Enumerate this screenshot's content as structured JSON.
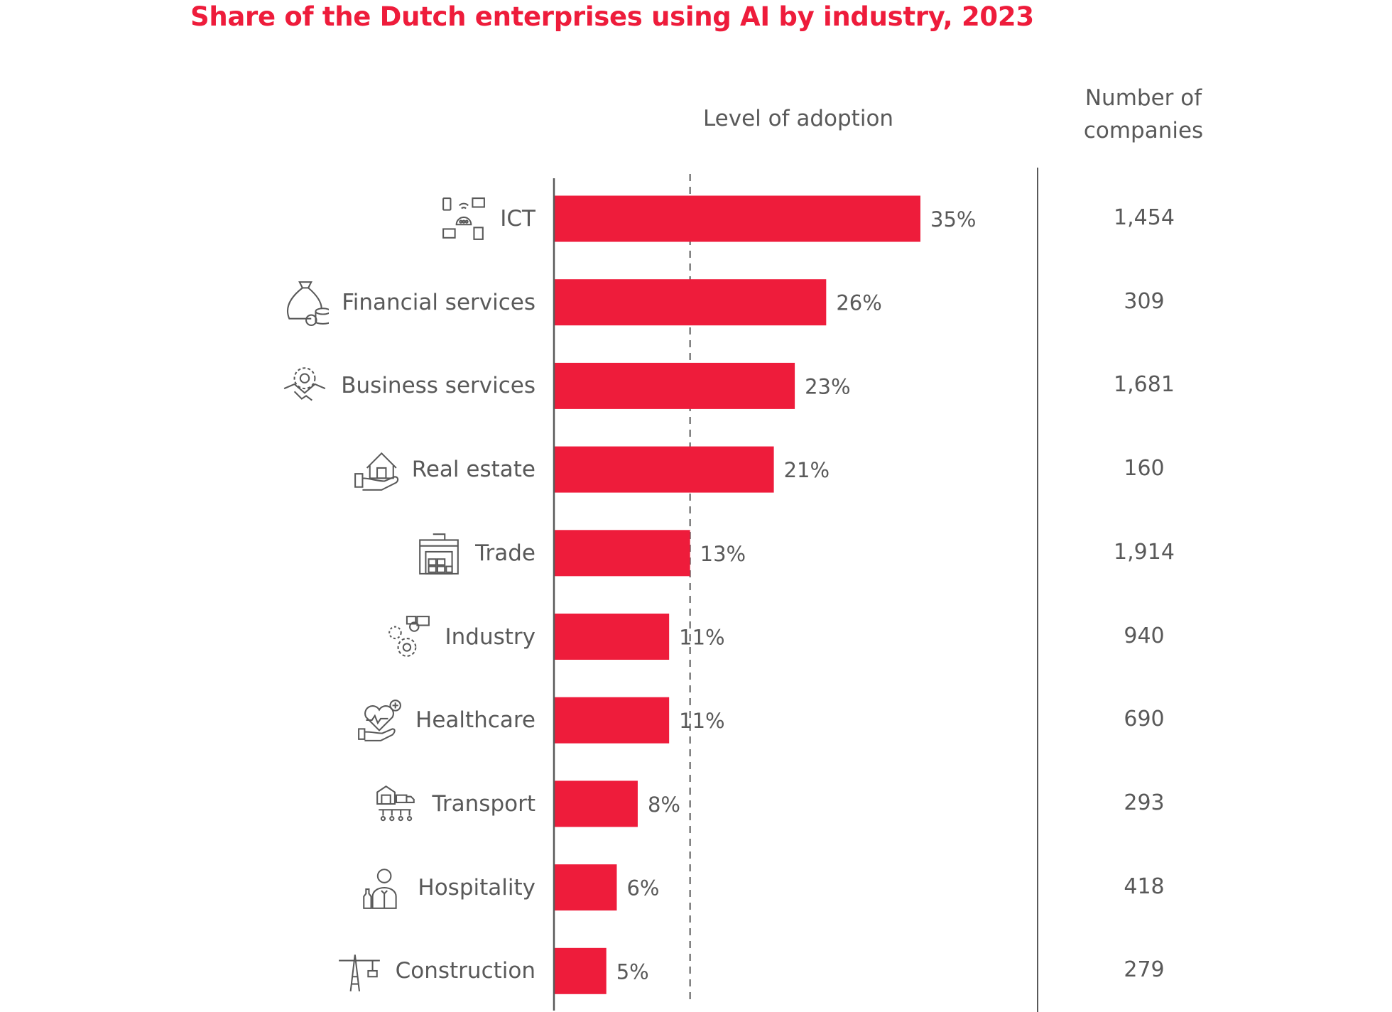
{
  "chart_data": {
    "type": "bar",
    "orientation": "horizontal",
    "title": "Share of the Dutch enterprises using AI by industry, 2023",
    "value_header": "Level of adoption",
    "count_header": "Number of companies",
    "categories": [
      "ICT",
      "Financial services",
      "Business services",
      "Real estate",
      "Trade",
      "Industry",
      "Healthcare",
      "Transport",
      "Hospitality",
      "Construction"
    ],
    "values": [
      35,
      26,
      23,
      21,
      13,
      11,
      11,
      8,
      6,
      5
    ],
    "value_labels": [
      "35%",
      "26%",
      "23%",
      "21%",
      "13%",
      "11%",
      "11%",
      "8%",
      "6%",
      "5%"
    ],
    "counts": [
      "1,454",
      "309",
      "1,681",
      "160",
      "1,914",
      "940",
      "690",
      "293",
      "418",
      "279"
    ],
    "icons": [
      "network-devices-icon",
      "money-bag-coins-icon",
      "handshake-gear-icon",
      "house-hand-icon",
      "warehouse-icon",
      "factory-gears-icon",
      "heart-hand-icon",
      "logistics-truck-icon",
      "waiter-icon",
      "crane-icon"
    ],
    "reference_line": 13,
    "xlim": [
      0,
      35
    ],
    "grid": false,
    "legend": "none",
    "colors": {
      "bar": "#ee1c3b",
      "title": "#ee1c3b",
      "text": "#595959",
      "axis": "#595959"
    }
  }
}
